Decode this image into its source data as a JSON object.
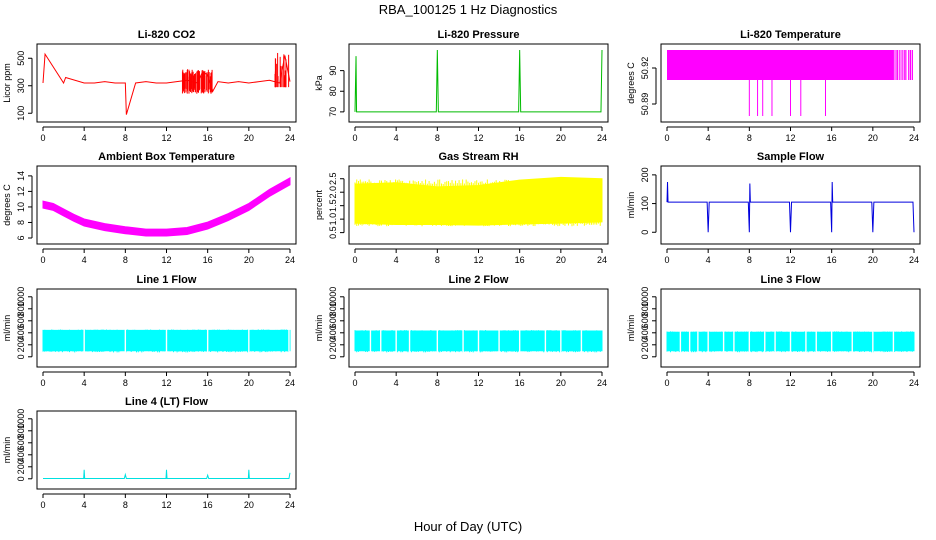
{
  "figure": {
    "title": "RBA_100125  1 Hz Diagnostics",
    "xlabel": "Hour of Day (UTC)"
  },
  "chart_data": [
    {
      "id": "co2",
      "type": "line",
      "title": "Li-820 CO2",
      "ylabel": "Licor ppm",
      "color": "#ff0000",
      "xlim": [
        0,
        24
      ],
      "ylim": [
        80,
        560
      ],
      "xticks": [
        0,
        4,
        8,
        12,
        16,
        20,
        24
      ],
      "yticks": [
        100,
        300,
        500
      ],
      "ytick_labels": [
        "100",
        "300",
        "500"
      ],
      "series": [
        {
          "name": "CO2",
          "x": [
            0,
            0.2,
            2,
            2.2,
            4,
            5,
            6,
            7,
            8,
            8.1,
            9,
            10,
            11,
            12,
            13,
            14,
            15,
            15.5,
            16,
            16.5,
            17,
            18,
            19,
            20,
            21,
            22,
            23,
            23.5,
            24
          ],
          "y": [
            320,
            530,
            320,
            360,
            320,
            320,
            330,
            320,
            320,
            90,
            320,
            330,
            320,
            320,
            330,
            340,
            320,
            400,
            380,
            260,
            330,
            320,
            330,
            320,
            330,
            340,
            320,
            520,
            330
          ]
        }
      ]
    },
    {
      "id": "pressure",
      "type": "line",
      "title": "Li-820 Pressure",
      "ylabel": "kPa",
      "color": "#00bb00",
      "xlim": [
        0,
        24
      ],
      "ylim": [
        68,
        100
      ],
      "xticks": [
        0,
        4,
        8,
        12,
        16,
        20,
        24
      ],
      "yticks": [
        70,
        80,
        90
      ],
      "ytick_labels": [
        "70",
        "80",
        "90"
      ],
      "series": [
        {
          "name": "Pressure",
          "x": [
            0,
            0.1,
            0.15,
            0.2,
            4,
            7.9,
            8.0,
            8.1,
            12,
            15.9,
            16.0,
            16.1,
            20,
            23.9,
            24.0
          ],
          "y": [
            70,
            97,
            70,
            70,
            70,
            70,
            100,
            70,
            70,
            70,
            100,
            70,
            70,
            70,
            100
          ]
        }
      ]
    },
    {
      "id": "licor_temp",
      "type": "line",
      "title": "Li-820 Temperature",
      "ylabel": "degrees C",
      "color": "#ff00ff",
      "xlim": [
        0,
        24
      ],
      "ylim": [
        50.88,
        50.935
      ],
      "xticks": [
        0,
        4,
        8,
        12,
        16,
        20,
        24
      ],
      "yticks": [
        50.89,
        50.92
      ],
      "ytick_labels": [
        "50.89",
        "50.92"
      ],
      "band": {
        "from": 0,
        "to": 24,
        "low": 50.91,
        "high": 50.935
      },
      "dips": [
        8.0,
        8.8,
        9.3,
        10.2,
        12.0,
        13.0,
        15.4
      ],
      "dip_low": 50.88
    },
    {
      "id": "box_temp",
      "type": "area",
      "title": "Ambient Box Temperature",
      "ylabel": "degrees C",
      "color": "#ff00ff",
      "xlim": [
        0,
        24
      ],
      "ylim": [
        6,
        14.5
      ],
      "xticks": [
        0,
        4,
        8,
        12,
        16,
        20,
        24
      ],
      "yticks": [
        6,
        8,
        10,
        12,
        14
      ],
      "ytick_labels": [
        "6",
        "8",
        "10",
        "12",
        "14"
      ],
      "series": [
        {
          "name": "Box temperature",
          "x": [
            0,
            1,
            2,
            3,
            4,
            6,
            8,
            10,
            12,
            14,
            16,
            18,
            20,
            22,
            24
          ],
          "y": [
            10.3,
            10.0,
            9.3,
            8.6,
            8.0,
            7.4,
            7.0,
            6.7,
            6.7,
            6.9,
            7.6,
            8.7,
            10.0,
            11.8,
            13.3
          ]
        }
      ],
      "band_half_width": 0.45
    },
    {
      "id": "rh",
      "type": "area",
      "title": "Gas Stream RH",
      "ylabel": "percent",
      "color": "#ffff00",
      "xlim": [
        0,
        24
      ],
      "ylim": [
        0.3,
        2.75
      ],
      "xticks": [
        0,
        4,
        8,
        12,
        16,
        20,
        24
      ],
      "yticks": [
        0.5,
        1.0,
        1.5,
        2.0,
        2.5
      ],
      "ytick_labels": [
        "0.5",
        "1.0",
        "1.5",
        "2.0",
        "2.5"
      ],
      "series": [
        {
          "name": "RH",
          "x": [
            0,
            4,
            8,
            12,
            16,
            20,
            24
          ],
          "low": [
            0.85,
            0.8,
            0.8,
            0.78,
            0.82,
            0.85,
            0.9
          ],
          "high": [
            2.3,
            2.35,
            2.2,
            2.25,
            2.45,
            2.55,
            2.5
          ]
        }
      ]
    },
    {
      "id": "sample_flow",
      "type": "line",
      "title": "Sample Flow",
      "ylabel": "ml/min",
      "color": "#0000dd",
      "xlim": [
        0,
        24
      ],
      "ylim": [
        -20,
        210
      ],
      "xticks": [
        0,
        4,
        8,
        12,
        16,
        20,
        24
      ],
      "yticks": [
        0,
        100,
        200
      ],
      "ytick_labels": [
        "0",
        "100",
        "200"
      ],
      "series": [
        {
          "name": "Sample flow",
          "x": [
            0,
            0.05,
            0.1,
            3.9,
            4.0,
            4.1,
            7.9,
            8.0,
            8.05,
            8.1,
            11.9,
            12.0,
            12.1,
            15.9,
            16.0,
            16.05,
            16.1,
            19.9,
            20.0,
            20.1,
            23.9,
            24.0
          ],
          "y": [
            105,
            175,
            105,
            105,
            0,
            105,
            105,
            0,
            170,
            105,
            105,
            0,
            105,
            105,
            0,
            175,
            105,
            105,
            0,
            105,
            105,
            0
          ]
        }
      ]
    },
    {
      "id": "line1",
      "type": "area",
      "title": "Line 1 Flow",
      "ylabel": "ml/min",
      "color": "#00ffff",
      "xlim": [
        0,
        24
      ],
      "ylim": [
        -70,
        1030
      ],
      "xticks": [
        0,
        4,
        8,
        12,
        16,
        20,
        24
      ],
      "yticks": [
        0,
        200,
        400,
        600,
        800,
        1000
      ],
      "ytick_labels": [
        "0",
        "200",
        "400",
        "600",
        "800",
        "1000"
      ],
      "series": [
        {
          "name": "Line 1",
          "x": [
            0,
            24
          ],
          "low": [
            100,
            100
          ],
          "high": [
            440,
            440
          ]
        }
      ],
      "gaps": [
        4.0,
        8.0,
        12.0,
        16.0,
        20.0,
        23.9
      ]
    },
    {
      "id": "line2",
      "type": "area",
      "title": "Line 2 Flow",
      "ylabel": "ml/min",
      "color": "#00ffff",
      "xlim": [
        0,
        24
      ],
      "ylim": [
        -70,
        1030
      ],
      "xticks": [
        0,
        4,
        8,
        12,
        16,
        20,
        24
      ],
      "yticks": [
        0,
        200,
        400,
        600,
        800,
        1000
      ],
      "ytick_labels": [
        "0",
        "200",
        "400",
        "600",
        "800",
        "1000"
      ],
      "series": [
        {
          "name": "Line 2",
          "x": [
            0,
            24
          ],
          "low": [
            100,
            100
          ],
          "high": [
            430,
            430
          ]
        }
      ],
      "gaps": [
        1.5,
        2.5,
        4.0,
        5.3,
        8.0,
        10.5,
        12.0,
        14.0,
        16.0,
        18.5,
        20.0,
        22.0
      ]
    },
    {
      "id": "line3",
      "type": "area",
      "title": "Line 3 Flow",
      "ylabel": "ml/min",
      "color": "#00ffff",
      "xlim": [
        0,
        24
      ],
      "ylim": [
        -70,
        1030
      ],
      "xticks": [
        0,
        4,
        8,
        12,
        16,
        20,
        24
      ],
      "yticks": [
        0,
        200,
        400,
        600,
        800,
        1000
      ],
      "ytick_labels": [
        "0",
        "200",
        "400",
        "600",
        "800",
        "1000"
      ],
      "series": [
        {
          "name": "Line 3",
          "x": [
            0,
            24
          ],
          "low": [
            100,
            100
          ],
          "high": [
            410,
            410
          ]
        }
      ],
      "gaps": [
        1.3,
        2.2,
        3.0,
        4.0,
        5.5,
        6.5,
        8.0,
        9.5,
        10.5,
        12.0,
        13.5,
        14.5,
        16.0,
        18.0,
        20.0,
        22.0
      ]
    },
    {
      "id": "line4",
      "type": "line",
      "title": "Line 4 (LT) Flow",
      "ylabel": "ml/min",
      "color": "#00e0e0",
      "xlim": [
        0,
        24
      ],
      "ylim": [
        -70,
        1030
      ],
      "xticks": [
        0,
        4,
        8,
        12,
        16,
        20,
        24
      ],
      "yticks": [
        0,
        200,
        400,
        600,
        800,
        1000
      ],
      "ytick_labels": [
        "0",
        "200",
        "400",
        "600",
        "800",
        "1000"
      ],
      "series": [
        {
          "name": "Line 4",
          "x": [
            0,
            3.95,
            4.0,
            4.05,
            7.9,
            8.0,
            8.1,
            11.95,
            12.0,
            12.05,
            15.9,
            16.0,
            16.1,
            19.95,
            20.0,
            20.05,
            23.9,
            24.0
          ],
          "y": [
            5,
            5,
            150,
            5,
            5,
            70,
            5,
            5,
            150,
            5,
            5,
            60,
            5,
            5,
            150,
            5,
            5,
            100
          ]
        }
      ]
    }
  ]
}
